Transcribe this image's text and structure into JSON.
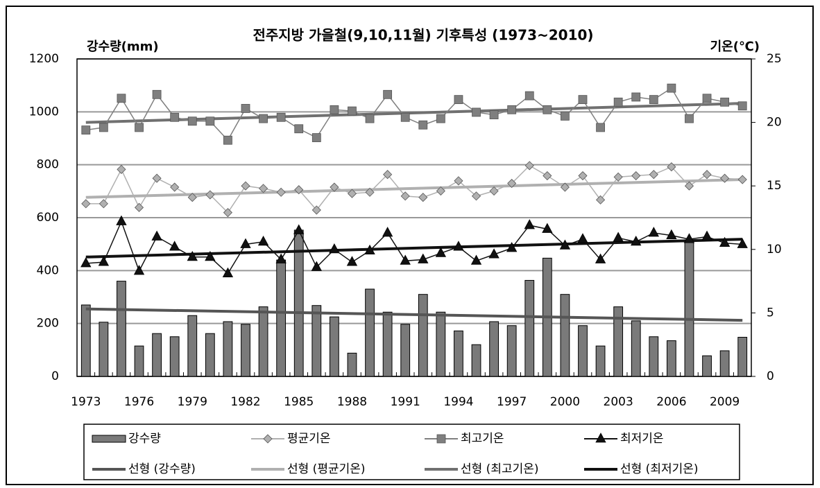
{
  "chart_data": {
    "type": "bar",
    "title": "전주지방 가을철(9,10,11월) 기후특성 (1973~2010)",
    "y_label": "강수량(mm)",
    "y2_label": "기온(℃)",
    "categories": [
      "1973",
      null,
      null,
      "1976",
      null,
      null,
      "1979",
      null,
      null,
      "1982",
      null,
      null,
      "1985",
      null,
      null,
      "1988",
      null,
      null,
      "1991",
      null,
      null,
      "1994",
      null,
      null,
      "1997",
      null,
      null,
      "2000",
      null,
      null,
      "2003",
      null,
      null,
      "2006",
      null,
      null,
      "2009",
      null
    ],
    "ylim": [
      0,
      1200
    ],
    "yticks": [
      0,
      200,
      400,
      600,
      800,
      1000,
      1200
    ],
    "y2lim": [
      0,
      25
    ],
    "y2ticks": [
      0,
      5,
      10,
      15,
      20,
      25
    ],
    "grid": true,
    "series": [
      {
        "name": "강수량",
        "kind": "bar",
        "color": "#7a7a7a",
        "values": [
          270,
          205,
          360,
          115,
          162,
          150,
          230,
          162,
          207,
          197,
          263,
          440,
          553,
          268,
          225,
          88,
          330,
          243,
          197,
          310,
          243,
          172,
          120,
          207,
          192,
          363,
          447,
          310,
          192,
          115,
          263,
          210,
          150,
          135,
          510,
          78,
          97,
          148
        ]
      },
      {
        "name": "평균기온",
        "kind": "line",
        "marker": "diamond",
        "axis": "y2",
        "color": "#b0b0b0",
        "values": [
          13.6,
          13.6,
          16.3,
          13.3,
          15.6,
          14.9,
          14.1,
          14.3,
          12.9,
          15.0,
          14.8,
          14.5,
          14.7,
          13.1,
          14.9,
          14.4,
          14.5,
          15.9,
          14.2,
          14.1,
          14.6,
          15.4,
          14.2,
          14.6,
          15.2,
          16.6,
          15.8,
          14.9,
          15.8,
          13.9,
          15.7,
          15.8,
          15.9,
          16.5,
          15.0,
          15.9,
          15.6,
          15.5
        ]
      },
      {
        "name": "최고기온",
        "kind": "line",
        "marker": "square",
        "axis": "y2",
        "color": "#7f7f7f",
        "values": [
          19.4,
          19.6,
          21.9,
          19.6,
          22.2,
          20.4,
          20.1,
          20.1,
          18.6,
          21.1,
          20.3,
          20.4,
          19.5,
          18.8,
          21.0,
          20.9,
          20.3,
          22.2,
          20.4,
          19.8,
          20.3,
          21.8,
          20.8,
          20.6,
          21.0,
          22.1,
          21.0,
          20.5,
          21.8,
          19.6,
          21.6,
          22.0,
          21.8,
          22.7,
          20.3,
          21.9,
          21.6,
          21.3
        ]
      },
      {
        "name": "최저기온",
        "kind": "line",
        "marker": "triangle",
        "axis": "y2",
        "color": "#111111",
        "values": [
          8.9,
          9.0,
          12.2,
          8.3,
          11.0,
          10.2,
          9.4,
          9.4,
          8.1,
          10.4,
          10.6,
          9.2,
          11.5,
          8.6,
          10.0,
          9.0,
          9.9,
          11.3,
          9.1,
          9.2,
          9.7,
          10.2,
          9.1,
          9.6,
          10.1,
          11.9,
          11.6,
          10.3,
          10.8,
          9.2,
          10.9,
          10.6,
          11.3,
          11.1,
          10.8,
          11.0,
          10.5,
          10.4
        ]
      },
      {
        "name": "선형 (강수량)",
        "kind": "trend",
        "color": "#555555",
        "values": [
          255,
          null,
          null,
          null,
          null,
          null,
          null,
          null,
          null,
          null,
          null,
          null,
          null,
          null,
          null,
          null,
          null,
          null,
          null,
          null,
          null,
          null,
          null,
          null,
          null,
          null,
          null,
          null,
          null,
          null,
          null,
          null,
          null,
          null,
          null,
          null,
          null,
          212
        ]
      },
      {
        "name": "선형 (평균기온)",
        "kind": "trend",
        "axis": "y2",
        "color": "#b0b0b0",
        "values": [
          14.1,
          null,
          null,
          null,
          null,
          null,
          null,
          null,
          null,
          null,
          null,
          null,
          null,
          null,
          null,
          null,
          null,
          null,
          null,
          null,
          null,
          null,
          null,
          null,
          null,
          null,
          null,
          null,
          null,
          null,
          null,
          null,
          null,
          null,
          null,
          null,
          null,
          15.5
        ]
      },
      {
        "name": "선형 (최고기온)",
        "kind": "trend",
        "axis": "y2",
        "color": "#707070",
        "values": [
          20.0,
          null,
          null,
          null,
          null,
          null,
          null,
          null,
          null,
          null,
          null,
          null,
          null,
          null,
          null,
          null,
          null,
          null,
          null,
          null,
          null,
          null,
          null,
          null,
          null,
          null,
          null,
          null,
          null,
          null,
          null,
          null,
          null,
          null,
          null,
          null,
          null,
          21.5
        ]
      },
      {
        "name": "선형 (최저기온)",
        "kind": "trend",
        "axis": "y2",
        "color": "#111111",
        "values": [
          9.4,
          null,
          null,
          null,
          null,
          null,
          null,
          null,
          null,
          null,
          null,
          null,
          null,
          null,
          null,
          null,
          null,
          null,
          null,
          null,
          null,
          null,
          null,
          null,
          null,
          null,
          null,
          null,
          null,
          null,
          null,
          null,
          null,
          null,
          null,
          null,
          null,
          10.8
        ]
      }
    ]
  }
}
